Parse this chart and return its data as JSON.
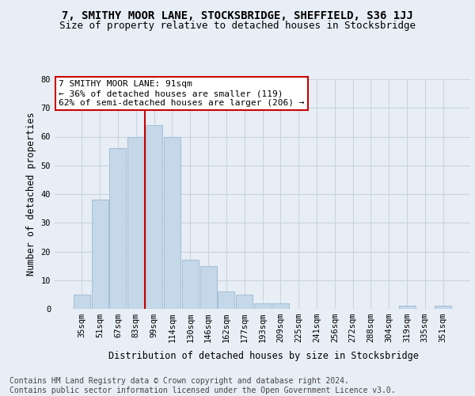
{
  "title": "7, SMITHY MOOR LANE, STOCKSBRIDGE, SHEFFIELD, S36 1JJ",
  "subtitle": "Size of property relative to detached houses in Stocksbridge",
  "xlabel": "Distribution of detached houses by size in Stocksbridge",
  "ylabel": "Number of detached properties",
  "footer_line1": "Contains HM Land Registry data © Crown copyright and database right 2024.",
  "footer_line2": "Contains public sector information licensed under the Open Government Licence v3.0.",
  "bar_labels": [
    "35sqm",
    "51sqm",
    "67sqm",
    "83sqm",
    "99sqm",
    "114sqm",
    "130sqm",
    "146sqm",
    "162sqm",
    "177sqm",
    "193sqm",
    "209sqm",
    "225sqm",
    "241sqm",
    "256sqm",
    "272sqm",
    "288sqm",
    "304sqm",
    "319sqm",
    "335sqm",
    "351sqm"
  ],
  "bar_values": [
    5,
    38,
    56,
    60,
    64,
    60,
    17,
    15,
    6,
    5,
    2,
    2,
    0,
    0,
    0,
    0,
    0,
    0,
    1,
    0,
    1
  ],
  "bar_color": "#c5d8ea",
  "bar_edgecolor": "#a8c0d6",
  "vline_pos": 3.5,
  "vline_color": "#cc0000",
  "annotation_line1": "7 SMITHY MOOR LANE: 91sqm",
  "annotation_line2": "← 36% of detached houses are smaller (119)",
  "annotation_line3": "62% of semi-detached houses are larger (206) →",
  "annotation_box_facecolor": "#ffffff",
  "annotation_box_edgecolor": "#cc0000",
  "ylim": [
    0,
    80
  ],
  "yticks": [
    0,
    10,
    20,
    30,
    40,
    50,
    60,
    70,
    80
  ],
  "grid_color": "#c8d4e0",
  "bg_color": "#e8eef5",
  "title_fontsize": 10,
  "subtitle_fontsize": 9,
  "label_fontsize": 8.5,
  "tick_fontsize": 7.5,
  "annot_fontsize": 8,
  "footer_fontsize": 7
}
